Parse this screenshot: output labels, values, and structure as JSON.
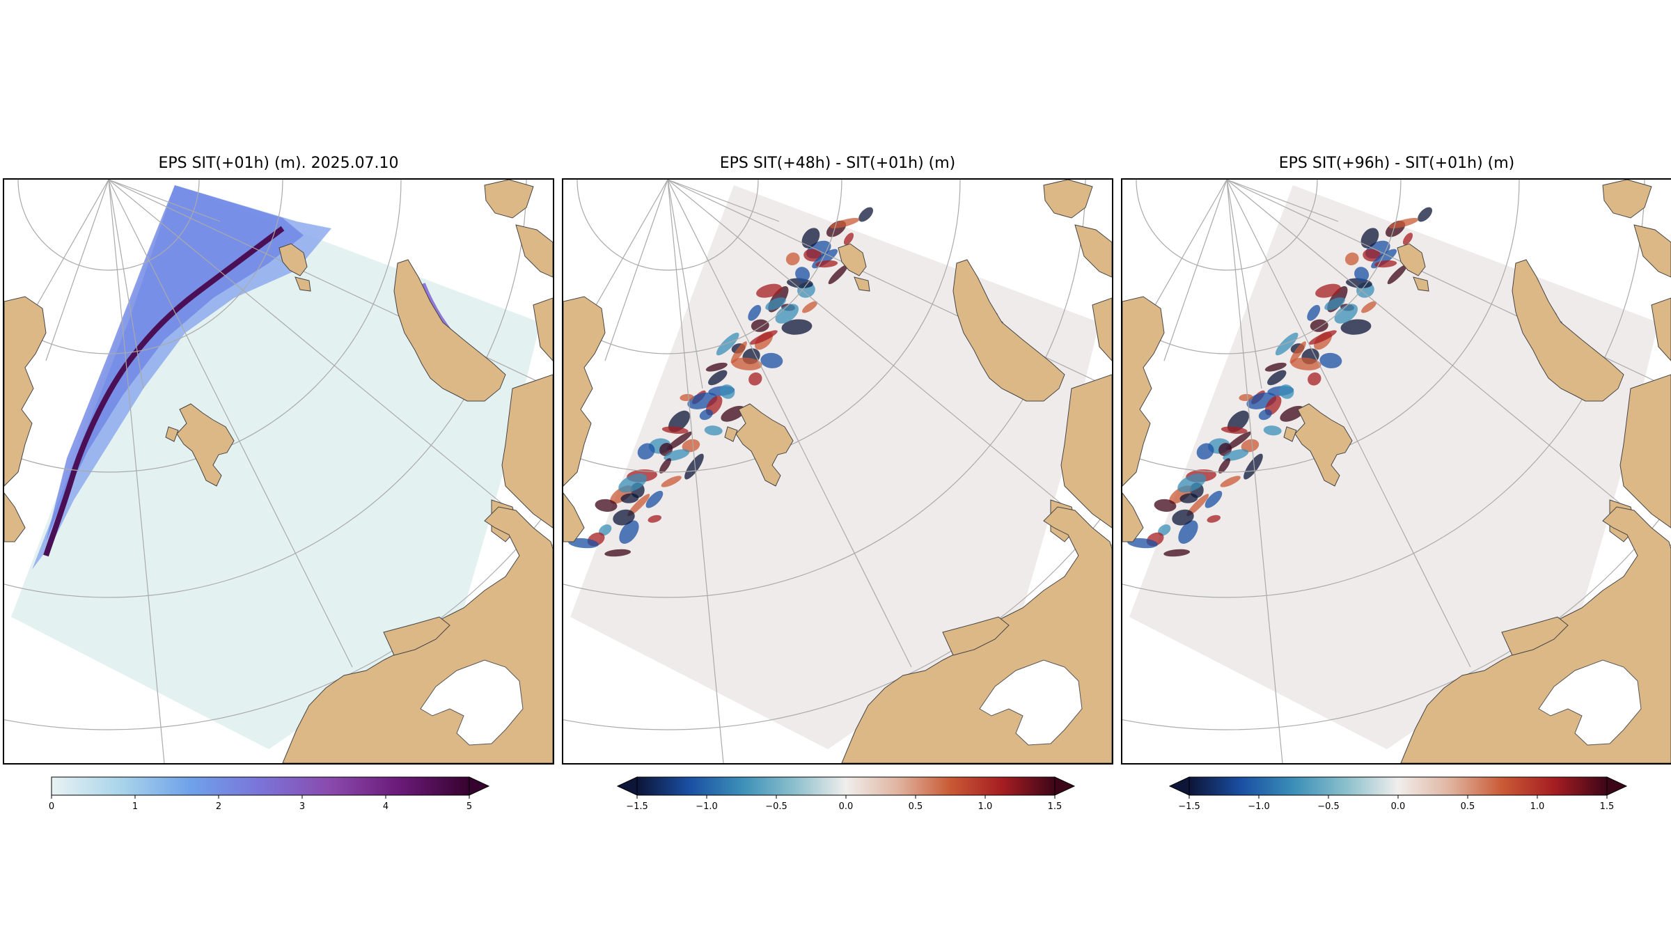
{
  "panels": [
    {
      "title": "EPS SIT(+01h) (m). 2025.07.10",
      "field": "thickness",
      "colorbar": {
        "colors": [
          "#e8f2f3",
          "#a9d4ea",
          "#6fa1ea",
          "#7b74d8",
          "#8a4aad",
          "#6a1a78",
          "#36022e"
        ],
        "ticks": [
          "0",
          "1",
          "2",
          "3",
          "4",
          "5"
        ],
        "extend": "max"
      }
    },
    {
      "title": "EPS SIT(+48h) - SIT(+01h) (m)",
      "field": "difference",
      "colorbar": {
        "colors": [
          "#0d1538",
          "#1a4fa3",
          "#3b8fb8",
          "#8bbfcc",
          "#f0eeec",
          "#e0b4a0",
          "#c95a35",
          "#a51d22",
          "#3d0618"
        ],
        "ticks": [
          "−1.5",
          "−1.0",
          "−0.5",
          "0.0",
          "0.5",
          "1.0",
          "1.5"
        ],
        "extend": "both"
      }
    },
    {
      "title": "EPS SIT(+96h) - SIT(+01h) (m)",
      "field": "difference",
      "colorbar": {
        "colors": [
          "#0d1538",
          "#1a4fa3",
          "#3b8fb8",
          "#8bbfcc",
          "#f0eeec",
          "#e0b4a0",
          "#c95a35",
          "#a51d22",
          "#3d0618"
        ],
        "ticks": [
          "−1.5",
          "−1.0",
          "−0.5",
          "0.0",
          "0.5",
          "1.0",
          "1.5"
        ],
        "extend": "both"
      }
    }
  ],
  "colors": {
    "land": "#ddb887",
    "ocean": "#ffffff",
    "domain_thickness": "#e4f1f1",
    "domain_difference": "#efebeb",
    "graticule": "#aaaaaa"
  }
}
